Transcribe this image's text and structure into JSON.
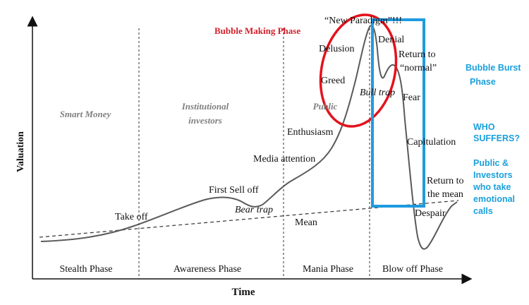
{
  "axes": {
    "y_label": "Valuation",
    "x_label": "Time"
  },
  "phases": [
    {
      "label": "Stealth Phase",
      "participant": "Smart Money"
    },
    {
      "label": "Awareness Phase",
      "participant_line1": "Institutional",
      "participant_line2": "investors"
    },
    {
      "label": "Mania Phase",
      "participant": "Public"
    },
    {
      "label": "Blow off Phase"
    }
  ],
  "curve_labels": {
    "take_off": "Take off",
    "first_sell_off": "First Sell off",
    "bear_trap": "Bear trap",
    "mean": "Mean",
    "media_attention": "Media attention",
    "enthusiasm": "Enthusiasm",
    "greed": "Greed",
    "delusion": "Delusion",
    "new_paradigm": "“New Paradigm”!!!",
    "bull_trap": "Bull trap",
    "denial": "Denial",
    "return_to_normal_line1": "Return to",
    "return_to_normal_line2": "“normal”",
    "fear": "Fear",
    "capitulation": "Capitulation",
    "return_to_mean_line1": "Return to",
    "return_to_mean_line2": "the mean",
    "despair": "Despair"
  },
  "annotations": {
    "bubble_making": "Bubble Making Phase",
    "bubble_burst_line1": "Bubble Burst",
    "bubble_burst_line2": "Phase",
    "who_suffers_line1": "WHO",
    "who_suffers_line2": "SUFFERS?",
    "victims_line1": "Public &",
    "victims_line2": "Investors",
    "victims_line3": "who take",
    "victims_line4": "emotional",
    "victims_line5": "calls"
  },
  "colors": {
    "curve": "#5a5a5a",
    "red_circle": "#e3121c",
    "blue_box": "#1e9be0",
    "red_text": "#d21f2a",
    "blue_text": "#1aa0dc"
  }
}
